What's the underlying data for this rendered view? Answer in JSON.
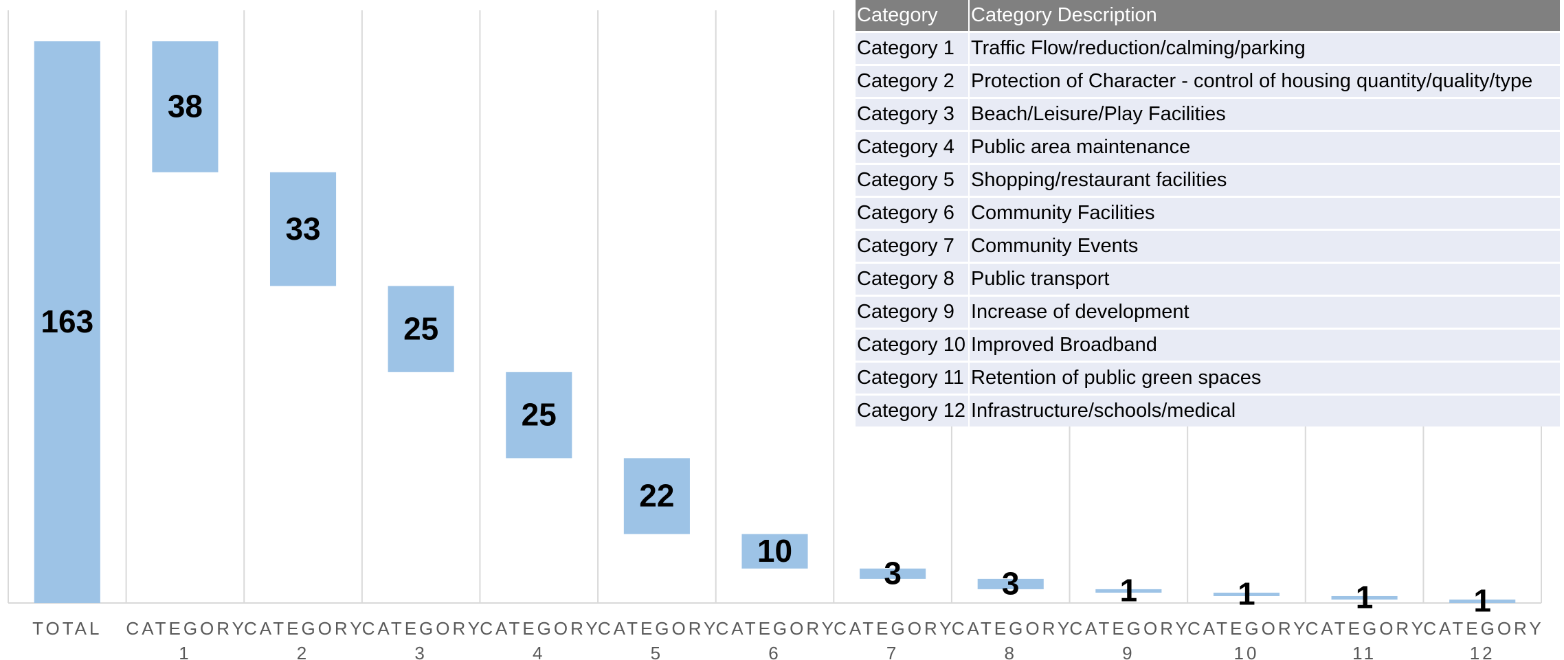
{
  "chart_data": {
    "type": "waterfall",
    "categories": [
      "TOTAL",
      "CATEGORY 1",
      "CATEGORY 2",
      "CATEGORY 3",
      "CATEGORY 4",
      "CATEGORY 5",
      "CATEGORY 6",
      "CATEGORY 7",
      "CATEGORY 8",
      "CATEGORY 9",
      "CATEGORY 10",
      "CATEGORY 11",
      "CATEGORY 12"
    ],
    "values": [
      163,
      38,
      33,
      25,
      25,
      22,
      10,
      3,
      3,
      1,
      1,
      1,
      1
    ],
    "color": "#9dc3e6",
    "ylim": [
      0,
      172
    ]
  },
  "table": {
    "header": [
      "Category",
      "Category Description"
    ],
    "rows": [
      [
        "Category 1",
        "Traffic Flow/reduction/calming/parking"
      ],
      [
        "Category 2",
        "Protection of Character - control of housing quantity/quality/type"
      ],
      [
        "Category 3",
        "Beach/Leisure/Play Facilities"
      ],
      [
        "Category 4",
        "Public area maintenance"
      ],
      [
        "Category 5",
        "Shopping/restaurant facilities"
      ],
      [
        "Category 6",
        "Community Facilities"
      ],
      [
        "Category 7",
        "Community Events"
      ],
      [
        "Category 8",
        "Public transport"
      ],
      [
        "Category 9",
        "Increase of development"
      ],
      [
        "Category 10",
        "Improved Broadband"
      ],
      [
        "Category 11",
        "Retention of public green spaces"
      ],
      [
        "Category 12",
        "Infrastructure/schools/medical"
      ]
    ]
  }
}
